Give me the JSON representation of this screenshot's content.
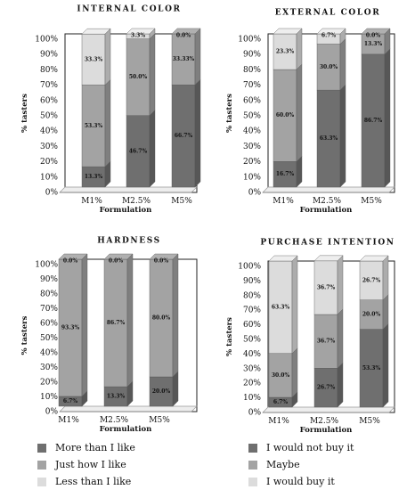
{
  "figure": {
    "legend_left": [
      {
        "label": "More than I like",
        "color": "#6f6f6f"
      },
      {
        "label": "Just how I like",
        "color": "#a3a3a3"
      },
      {
        "label": "Less than I like",
        "color": "#dcdcdc"
      }
    ],
    "legend_right": [
      {
        "label": "I would not buy it",
        "color": "#6f6f6f"
      },
      {
        "label": "Maybe",
        "color": "#a3a3a3"
      },
      {
        "label": "I would buy it",
        "color": "#dcdcdc"
      }
    ]
  },
  "chart_data": [
    {
      "type": "bar",
      "stacked": true,
      "title": "INTERNAL COLOR",
      "xlabel": "Formulation",
      "ylabel": "% tasters",
      "ylim": [
        0,
        100
      ],
      "yticks": [
        "0%",
        "10%",
        "20%",
        "30%",
        "40%",
        "50%",
        "60%",
        "70%",
        "80%",
        "90%",
        "100%"
      ],
      "categories": [
        "M1%",
        "M2.5%",
        "M5%"
      ],
      "series": [
        {
          "name": "More than I like",
          "color": "#6f6f6f",
          "values": [
            13.3,
            46.7,
            66.7
          ],
          "labels": [
            "13.3%",
            "46.7%",
            "66.7%"
          ]
        },
        {
          "name": "Just how I like",
          "color": "#a3a3a3",
          "values": [
            53.3,
            50.0,
            33.33
          ],
          "labels": [
            "53.3%",
            "50.0%",
            "33.33%"
          ]
        },
        {
          "name": "Less than I like",
          "color": "#dcdcdc",
          "values": [
            33.3,
            3.3,
            0.0
          ],
          "labels": [
            "33.3%",
            "3.3%",
            "0.0%"
          ]
        }
      ]
    },
    {
      "type": "bar",
      "stacked": true,
      "title": "EXTERNAL COLOR",
      "xlabel": "Formulation",
      "ylabel": "% tasters",
      "ylim": [
        0,
        100
      ],
      "yticks": [
        "0%",
        "10%",
        "20%",
        "30%",
        "40%",
        "50%",
        "60%",
        "70%",
        "80%",
        "90%",
        "100%"
      ],
      "categories": [
        "M1%",
        "M2.5%",
        "M5%"
      ],
      "series": [
        {
          "name": "More than I like",
          "color": "#6f6f6f",
          "values": [
            16.7,
            63.3,
            86.7
          ],
          "labels": [
            "16.7%",
            "63.3%",
            "86.7%"
          ]
        },
        {
          "name": "Just how I like",
          "color": "#a3a3a3",
          "values": [
            60.0,
            30.0,
            13.3
          ],
          "labels": [
            "60.0%",
            "30.0%",
            "13.3%"
          ]
        },
        {
          "name": "Less than I like",
          "color": "#dcdcdc",
          "values": [
            23.3,
            6.7,
            0.0
          ],
          "labels": [
            "23.3%",
            "6.7%",
            "0.0%"
          ]
        }
      ]
    },
    {
      "type": "bar",
      "stacked": true,
      "title": "HARDNESS",
      "xlabel": "Formulation",
      "ylabel": "% tasters",
      "ylim": [
        0,
        100
      ],
      "yticks": [
        "0%",
        "10%",
        "20%",
        "30%",
        "40%",
        "50%",
        "60%",
        "70%",
        "80%",
        "90%",
        "100%"
      ],
      "categories": [
        "M1%",
        "M2.5%",
        "M5%"
      ],
      "series": [
        {
          "name": "More than I like",
          "color": "#6f6f6f",
          "values": [
            6.7,
            13.3,
            20.0
          ],
          "labels": [
            "6.7%",
            "13.3%",
            "20.0%"
          ]
        },
        {
          "name": "Just how I like",
          "color": "#a3a3a3",
          "values": [
            93.3,
            86.7,
            80.0
          ],
          "labels": [
            "93.3%",
            "86.7%",
            "80.0%"
          ]
        },
        {
          "name": "Less than I like",
          "color": "#dcdcdc",
          "values": [
            0.0,
            0.0,
            0.0
          ],
          "labels": [
            "0.0%",
            "0.0%",
            "0.0%"
          ]
        }
      ]
    },
    {
      "type": "bar",
      "stacked": true,
      "title": "PURCHASE INTENTION",
      "xlabel": "Formulation",
      "ylabel": "% tasters",
      "ylim": [
        0,
        100
      ],
      "yticks": [
        "0%",
        "10%",
        "20%",
        "30%",
        "40%",
        "50%",
        "60%",
        "70%",
        "80%",
        "90%",
        "100%"
      ],
      "categories": [
        "M1%",
        "M2.5%",
        "M5%"
      ],
      "series": [
        {
          "name": "I would not buy it",
          "color": "#6f6f6f",
          "values": [
            6.7,
            26.7,
            53.3
          ],
          "labels": [
            "6.7%",
            "26.7%",
            "53.3%"
          ]
        },
        {
          "name": "Maybe",
          "color": "#a3a3a3",
          "values": [
            30.0,
            36.7,
            20.0
          ],
          "labels": [
            "30.0%",
            "36.7%",
            "20.0%"
          ]
        },
        {
          "name": "I would buy it",
          "color": "#dcdcdc",
          "values": [
            63.3,
            36.7,
            26.7
          ],
          "labels": [
            "63.3%",
            "36.7%",
            "26.7%"
          ]
        }
      ]
    }
  ]
}
